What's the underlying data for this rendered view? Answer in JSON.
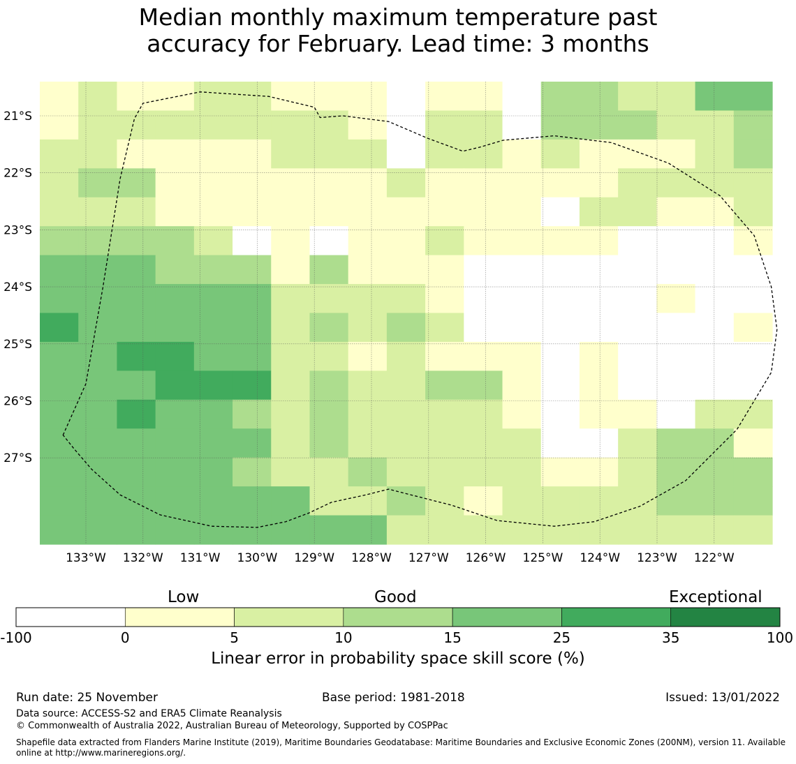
{
  "title": {
    "line1": "Median monthly maximum temperature past",
    "line2": "accuracy for February. Lead time: 3 months"
  },
  "map": {
    "lon_labels": [
      "133°W",
      "132°W",
      "131°W",
      "130°W",
      "129°W",
      "128°W",
      "127°W",
      "126°W",
      "125°W",
      "124°W",
      "123°W",
      "122°W"
    ],
    "lat_labels": [
      "21°S",
      "22°S",
      "23°S",
      "24°S",
      "25°S",
      "26°S",
      "27°S"
    ],
    "grid": [
      [
        1,
        2,
        1,
        1,
        2,
        2,
        1,
        1,
        1,
        0,
        1,
        1,
        0,
        3,
        3,
        2,
        2,
        4,
        4
      ],
      [
        1,
        2,
        2,
        2,
        2,
        2,
        2,
        2,
        1,
        0,
        2,
        2,
        0,
        3,
        3,
        3,
        2,
        2,
        3
      ],
      [
        2,
        2,
        1,
        1,
        1,
        1,
        2,
        2,
        2,
        0,
        2,
        2,
        1,
        2,
        1,
        1,
        1,
        2,
        3
      ],
      [
        2,
        3,
        3,
        1,
        1,
        1,
        1,
        1,
        1,
        2,
        1,
        1,
        1,
        1,
        1,
        2,
        2,
        2,
        2
      ],
      [
        2,
        2,
        2,
        1,
        1,
        1,
        1,
        1,
        1,
        1,
        1,
        1,
        1,
        0,
        2,
        2,
        1,
        1,
        2
      ],
      [
        3,
        3,
        3,
        3,
        2,
        0,
        1,
        0,
        1,
        1,
        2,
        1,
        1,
        1,
        1,
        0,
        0,
        0,
        1
      ],
      [
        4,
        4,
        4,
        3,
        3,
        3,
        1,
        3,
        1,
        1,
        1,
        0,
        0,
        0,
        0,
        0,
        0,
        0,
        0
      ],
      [
        4,
        4,
        4,
        4,
        4,
        4,
        2,
        2,
        2,
        2,
        1,
        0,
        0,
        0,
        0,
        0,
        1,
        0,
        0
      ],
      [
        5,
        4,
        4,
        4,
        4,
        4,
        2,
        3,
        2,
        3,
        2,
        0,
        0,
        0,
        0,
        0,
        0,
        0,
        1
      ],
      [
        4,
        4,
        5,
        5,
        4,
        4,
        2,
        2,
        1,
        2,
        1,
        1,
        1,
        0,
        1,
        0,
        0,
        0,
        0
      ],
      [
        4,
        4,
        4,
        5,
        5,
        5,
        2,
        3,
        2,
        2,
        3,
        3,
        1,
        0,
        1,
        0,
        0,
        0,
        0
      ],
      [
        4,
        4,
        5,
        4,
        4,
        3,
        2,
        3,
        2,
        2,
        2,
        2,
        1,
        0,
        1,
        1,
        0,
        2,
        2
      ],
      [
        4,
        4,
        4,
        4,
        4,
        4,
        2,
        3,
        2,
        2,
        2,
        2,
        2,
        0,
        0,
        2,
        3,
        3,
        1
      ],
      [
        4,
        4,
        4,
        4,
        4,
        3,
        2,
        2,
        3,
        2,
        2,
        2,
        2,
        1,
        1,
        2,
        3,
        3,
        3
      ],
      [
        4,
        4,
        4,
        4,
        4,
        4,
        4,
        2,
        2,
        3,
        2,
        1,
        2,
        2,
        2,
        2,
        3,
        3,
        3
      ],
      [
        4,
        4,
        4,
        4,
        4,
        4,
        4,
        4,
        4,
        2,
        2,
        2,
        2,
        2,
        2,
        2,
        2,
        2,
        2
      ]
    ],
    "grid_note": "Cell values are colour-bin indices into colorbar.colors (0 = -100 to 0, 1 = 0 to 5, 2 = 5 to 10, 3 = 10 to 15, 4 = 15 to 25, 5 = 25 to 35, 6 = 35 to 100)",
    "eez_boundary": [
      [
        -133.4,
        -26.6
      ],
      [
        -133.0,
        -25.7
      ],
      [
        -132.7,
        -24.0
      ],
      [
        -132.4,
        -22.1
      ],
      [
        -132.15,
        -21.05
      ],
      [
        -132.0,
        -20.78
      ],
      [
        -131.0,
        -20.58
      ],
      [
        -129.8,
        -20.66
      ],
      [
        -129.0,
        -20.85
      ],
      [
        -128.9,
        -21.03
      ],
      [
        -128.5,
        -21.0
      ],
      [
        -127.7,
        -21.1
      ],
      [
        -127.0,
        -21.4
      ],
      [
        -126.4,
        -21.62
      ],
      [
        -126.1,
        -21.55
      ],
      [
        -125.7,
        -21.43
      ],
      [
        -124.8,
        -21.35
      ],
      [
        -123.8,
        -21.47
      ],
      [
        -122.8,
        -21.83
      ],
      [
        -121.9,
        -22.4
      ],
      [
        -121.3,
        -23.1
      ],
      [
        -121.0,
        -24.0
      ],
      [
        -120.9,
        -24.75
      ],
      [
        -121.0,
        -25.5
      ],
      [
        -121.6,
        -26.5
      ],
      [
        -122.5,
        -27.4
      ],
      [
        -123.3,
        -27.85
      ],
      [
        -124.1,
        -28.12
      ],
      [
        -124.8,
        -28.2
      ],
      [
        -125.8,
        -28.1
      ],
      [
        -126.6,
        -27.83
      ],
      [
        -127.7,
        -27.55
      ],
      [
        -128.1,
        -27.65
      ],
      [
        -128.7,
        -27.78
      ],
      [
        -129.1,
        -27.97
      ],
      [
        -129.5,
        -28.12
      ],
      [
        -130.0,
        -28.22
      ],
      [
        -130.8,
        -28.2
      ],
      [
        -131.7,
        -28.0
      ],
      [
        -132.4,
        -27.65
      ],
      [
        -132.9,
        -27.2
      ],
      [
        -133.2,
        -26.85
      ],
      [
        -133.4,
        -26.6
      ]
    ]
  },
  "colorbar": {
    "labels": {
      "low": "Low",
      "good": "Good",
      "exceptional": "Exceptional"
    },
    "ticks": [
      "-100",
      "0",
      "5",
      "10",
      "15",
      "25",
      "35",
      "100"
    ],
    "colors": [
      "#ffffff",
      "#ffffcc",
      "#d9f0a3",
      "#addd8e",
      "#78c679",
      "#41ab5d",
      "#238443"
    ],
    "xlabel": "Linear error in probability space skill score (%)"
  },
  "footer": {
    "run_date": "Run date: 25 November",
    "base_period": "Base period: 1981-2018",
    "issued": "Issued: 13/01/2022",
    "data_source": "Data source: ACCESS-S2 and ERA5 Climate Reanalysis",
    "copyright": "© Commonwealth of Australia 2022, Australian Bureau of Meteorology, Supported by COSPPac",
    "shapefile_line1": "Shapefile data extracted from Flanders Marine Institute (2019), Maritime Boundaries Geodatabase: Maritime Boundaries and Exclusive Economic Zones (200NM), version 11. Available",
    "shapefile_line2": "online at http://www.marineregions.org/."
  }
}
